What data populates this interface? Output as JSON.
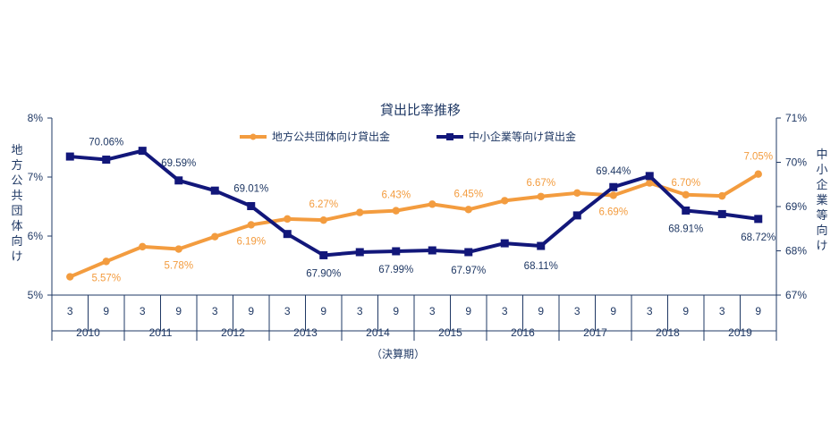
{
  "chart_data": {
    "type": "line",
    "title": "貸出比率推移",
    "xlabel": "（決算期）",
    "y_left_label": "地方公共団体向け",
    "y_right_label": "中小企業等向け",
    "y_left_ticks": [
      "8%",
      "7%",
      "6%",
      "5%"
    ],
    "y_right_ticks": [
      "71%",
      "70%",
      "69%",
      "68%",
      "67%"
    ],
    "y_left_lim": [
      5,
      8
    ],
    "y_right_lim": [
      67,
      71
    ],
    "months": [
      "3",
      "9",
      "3",
      "9",
      "3",
      "9",
      "3",
      "9",
      "3",
      "9",
      "3",
      "9",
      "3",
      "9",
      "3",
      "9",
      "3",
      "9",
      "3",
      "9"
    ],
    "years": [
      "2010",
      "2011",
      "2012",
      "2013",
      "2014",
      "2015",
      "2016",
      "2017",
      "2018",
      "2019"
    ],
    "series": [
      {
        "name": "地方公共団体向け貸出金",
        "axis": "left",
        "color": "#f39c3f",
        "values": [
          5.31,
          5.57,
          5.82,
          5.78,
          5.99,
          6.19,
          6.29,
          6.27,
          6.4,
          6.43,
          6.54,
          6.45,
          6.6,
          6.67,
          6.73,
          6.69,
          6.9,
          6.7,
          6.68,
          7.05
        ],
        "labels": [
          "",
          "5.57%",
          "",
          "5.78%",
          "",
          "6.19%",
          "",
          "6.27%",
          "",
          "6.43%",
          "",
          "6.45%",
          "",
          "6.67%",
          "",
          "6.69%",
          "",
          "6.70%",
          "",
          "7.05%"
        ]
      },
      {
        "name": "中小企業等向け貸出金",
        "axis": "right",
        "color": "#12177a",
        "values": [
          70.13,
          70.06,
          70.26,
          69.59,
          69.36,
          69.01,
          68.38,
          67.9,
          67.97,
          67.99,
          68.01,
          67.97,
          68.17,
          68.11,
          68.8,
          69.44,
          69.69,
          68.91,
          68.83,
          68.72
        ],
        "labels": [
          "",
          "70.06%",
          "",
          "69.59%",
          "",
          "69.01%",
          "",
          "67.90%",
          "",
          "67.99%",
          "",
          "67.97%",
          "",
          "68.11%",
          "",
          "69.44%",
          "",
          "68.91%",
          "",
          "68.72%"
        ]
      }
    ]
  }
}
